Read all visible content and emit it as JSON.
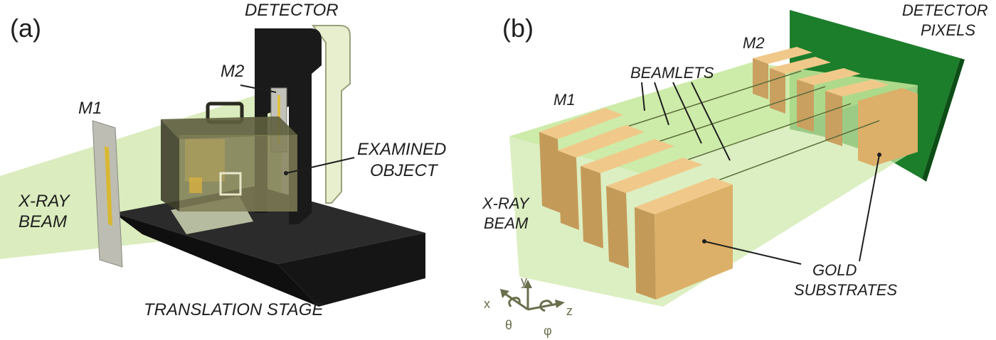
{
  "panel_a": {
    "tag": "(a)",
    "labels": {
      "detector": "DETECTOR",
      "m2": "M2",
      "m1": "M1",
      "beam_line1": "X-RAY",
      "beam_line2": "BEAM",
      "object_line1": "EXAMINED",
      "object_line2": "OBJECT",
      "stage": "TRANSLATION STAGE"
    }
  },
  "panel_b": {
    "tag": "(b)",
    "labels": {
      "pixels_line1": "DETECTOR",
      "pixels_line2": "PIXELS",
      "m2": "M2",
      "beamlets": "BEAMLETS",
      "m1": "M1",
      "beam_line1": "X-RAY",
      "beam_line2": "BEAM",
      "gold_line1": "GOLD",
      "gold_line2": "SUBSTRATES"
    },
    "axes": {
      "x": "x",
      "y": "y",
      "z": "z",
      "theta": "θ",
      "phi": "φ"
    }
  },
  "colors": {
    "beam": "#b6e48a",
    "gold": "#dcb068",
    "detector_black": "#1a1a1a",
    "detector_pixels": "#1c7d2a",
    "axes": "#6a6e4c"
  }
}
